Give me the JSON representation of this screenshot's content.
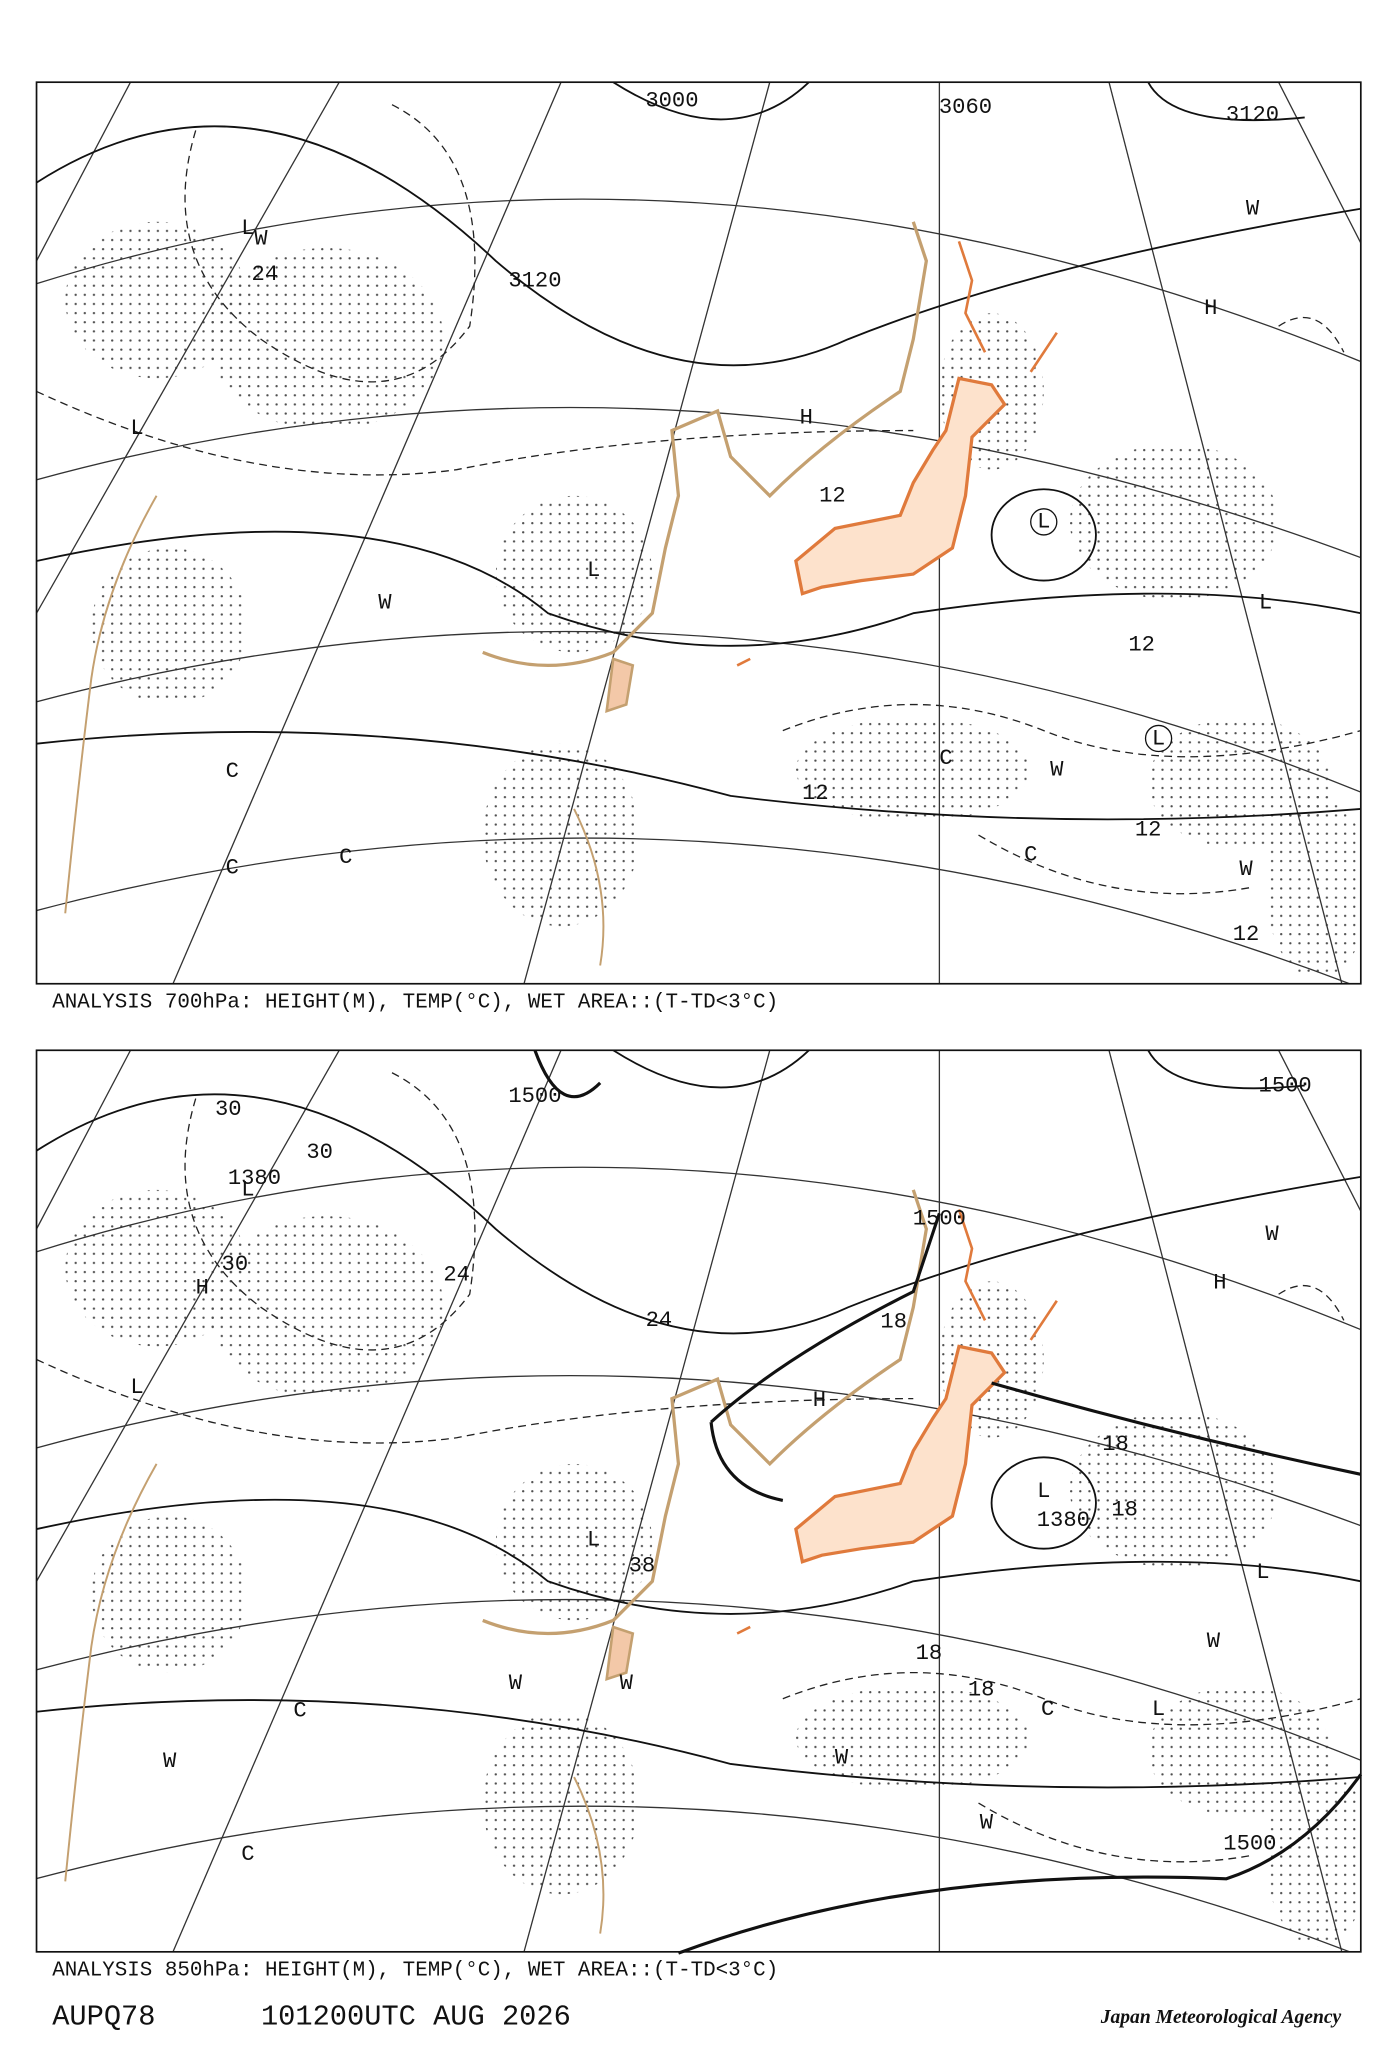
{
  "panels": [
    {
      "caption": "ANALYSIS 700hPa: HEIGHT(M), TEMP(°C), WET AREA::(T-TD<3°C)",
      "labels": [
        "3000",
        "3060",
        "3120",
        "3120",
        "L",
        "L",
        "L",
        "L",
        "H",
        "H",
        "W",
        "W",
        "W",
        "W",
        "W",
        "C",
        "C",
        "C",
        "C",
        "C",
        "12",
        "12",
        "12",
        "12",
        "12",
        "24",
        "L",
        "L"
      ]
    },
    {
      "caption": "ANALYSIS 850hPa: HEIGHT(M), TEMP(°C), WET AREA::(T-TD<3°C)",
      "labels": [
        "1500",
        "1500",
        "1500",
        "1500",
        "1380",
        "1380",
        "30",
        "30",
        "30",
        "24",
        "24",
        "18",
        "18",
        "18",
        "18",
        "18",
        "L",
        "L",
        "L",
        "L",
        "L",
        "L",
        "H",
        "H",
        "H",
        "W",
        "W",
        "W",
        "W",
        "W",
        "W",
        "W",
        "C",
        "C",
        "C",
        "38"
      ]
    }
  ],
  "footer": {
    "code": "AUPQ78",
    "time": "101200UTC AUG 2026",
    "agency": "Japan Meteorological Agency"
  }
}
